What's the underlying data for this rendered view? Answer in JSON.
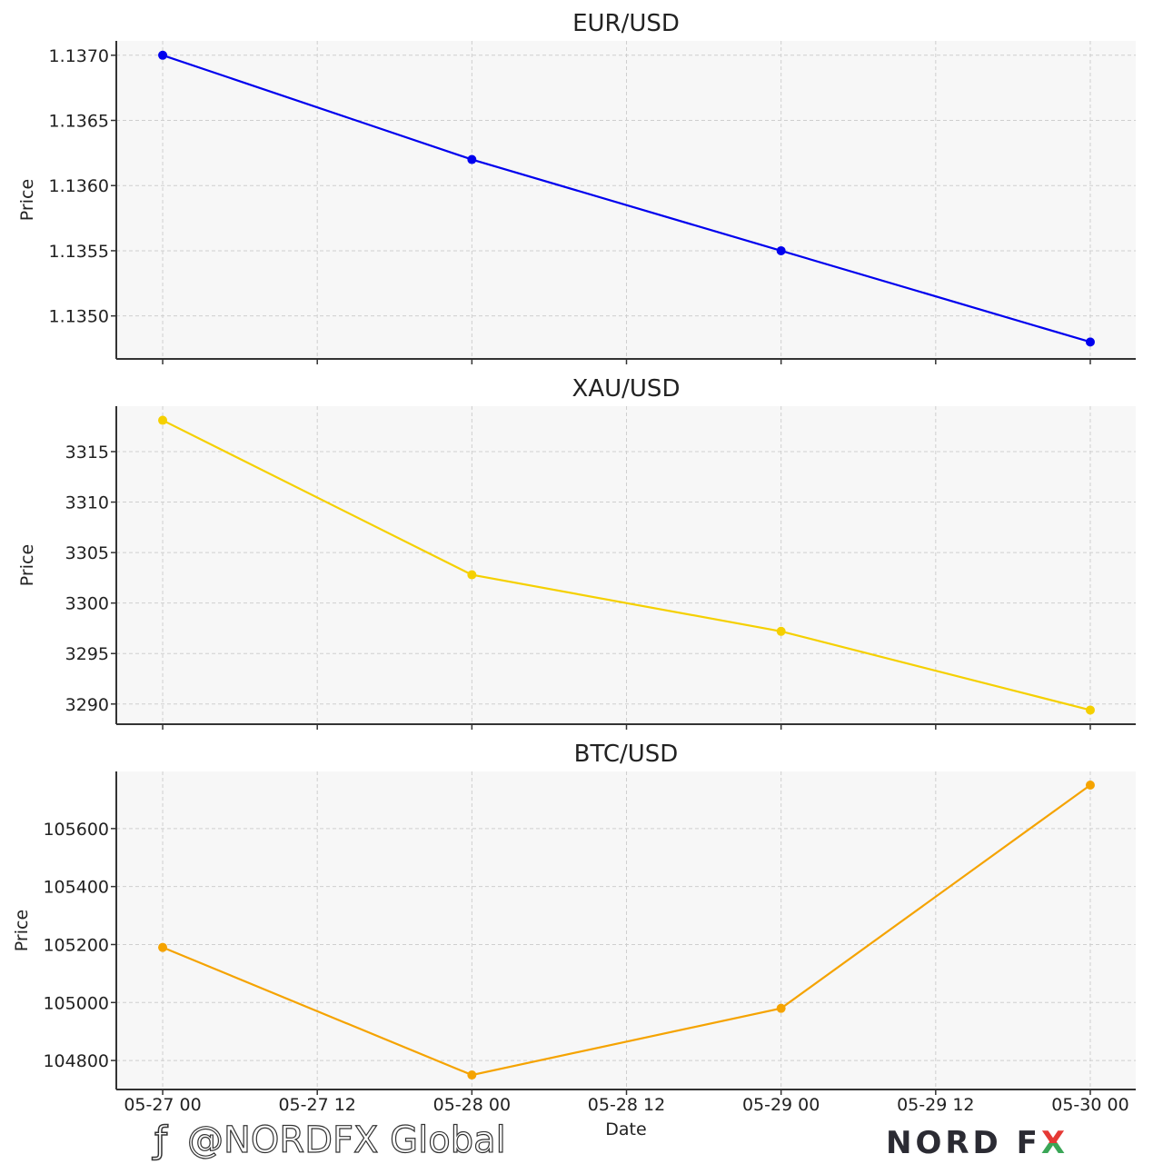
{
  "chart_data": [
    {
      "type": "line",
      "title": "EUR/USD",
      "xlabel": "",
      "ylabel": "Price",
      "x": [
        "2025-05-27 00:00",
        "2025-05-28 00:00",
        "2025-05-29 00:00",
        "2025-05-30 00:00"
      ],
      "series": [
        {
          "values": [
            1.137,
            1.1362,
            1.1355,
            1.1348
          ],
          "color": "#0000ee"
        }
      ],
      "yticks": [
        1.135,
        1.1355,
        1.136,
        1.1365,
        1.137
      ],
      "ytick_labels": [
        "1.1350",
        "1.1355",
        "1.1360",
        "1.1365",
        "1.1370"
      ],
      "ylim": [
        1.13467,
        1.13711
      ],
      "grid": true
    },
    {
      "type": "line",
      "title": "XAU/USD",
      "xlabel": "",
      "ylabel": "Price",
      "x": [
        "2025-05-27 00:00",
        "2025-05-28 00:00",
        "2025-05-29 00:00",
        "2025-05-30 00:00"
      ],
      "series": [
        {
          "values": [
            3318.1,
            3302.8,
            3297.2,
            3289.4
          ],
          "color": "#f5d000"
        }
      ],
      "yticks": [
        3290,
        3295,
        3300,
        3305,
        3310,
        3315
      ],
      "ytick_labels": [
        "3290",
        "3295",
        "3300",
        "3305",
        "3310",
        "3315"
      ],
      "ylim": [
        3288.0,
        3319.5
      ],
      "grid": true
    },
    {
      "type": "line",
      "title": "BTC/USD",
      "xlabel": "Date",
      "ylabel": "Price",
      "x": [
        "2025-05-27 00:00",
        "2025-05-28 00:00",
        "2025-05-29 00:00",
        "2025-05-30 00:00"
      ],
      "series": [
        {
          "values": [
            105190,
            104750,
            104980,
            105750
          ],
          "color": "#f5a300"
        }
      ],
      "yticks": [
        104800,
        105000,
        105200,
        105400,
        105600
      ],
      "ytick_labels": [
        "104800",
        "105000",
        "105200",
        "105400",
        "105600"
      ],
      "ylim": [
        104700,
        105797
      ],
      "grid": true
    }
  ],
  "x_axis": {
    "tick_labels": [
      "05-27 00",
      "05-27 12",
      "05-28 00",
      "05-28 12",
      "05-29 00",
      "05-29 12",
      "05-30 00"
    ],
    "label": "Date"
  },
  "watermark": {
    "handle": "@NORDFX Global",
    "logo": "NORD FX",
    "logo_colors": [
      "#2b2b33",
      "#e53935",
      "#3aa657"
    ]
  }
}
